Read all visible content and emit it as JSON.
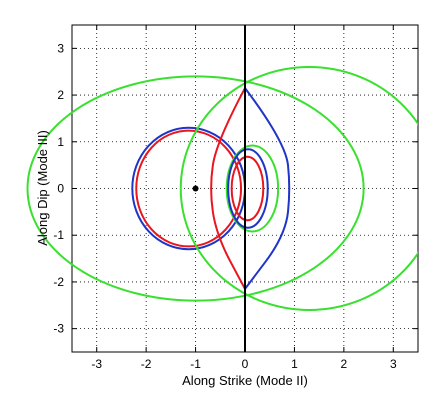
{
  "chart_data": {
    "type": "line",
    "title": "",
    "xlabel": "Along Strike (Mode II)",
    "ylabel": "Along Dip (Mode III)",
    "xlim": [
      -3.5,
      3.5
    ],
    "ylim": [
      -3.5,
      3.5
    ],
    "xticks": [
      -3,
      -2,
      -1,
      0,
      1,
      2,
      3
    ],
    "yticks": [
      -3,
      -2,
      -1,
      0,
      1,
      2,
      3
    ],
    "xtick_labels": [
      "-3",
      "-2",
      "-1",
      "0",
      "1",
      "2",
      "3"
    ],
    "ytick_labels": [
      "-3",
      "-2",
      "-1",
      "0",
      "1",
      "2",
      "3"
    ],
    "grid": "dotted",
    "legend": "none",
    "colors": {
      "red": "#e8161e",
      "blue": "#1f35c8",
      "green": "#39e02f",
      "black": "#000000"
    },
    "vertical_line": {
      "x": 0
    },
    "point": {
      "x": -1,
      "y": 0
    },
    "series": [
      {
        "color": "green",
        "shape": "circle",
        "cx": -1,
        "cy": 0,
        "rx": 3.4,
        "ry": 2.4
      },
      {
        "color": "blue",
        "shape": "circle",
        "cx": -1.14,
        "cy": 0,
        "rx": 1.14,
        "ry": 1.3
      },
      {
        "color": "red",
        "shape": "circle",
        "cx": -1.14,
        "cy": 0,
        "rx": 1.06,
        "ry": 1.24
      },
      {
        "color": "green",
        "shape": "arc",
        "cx": 1.3,
        "cy": 0,
        "rx": 2.6,
        "ry": 2.6
      },
      {
        "color": "green",
        "shape": "circle",
        "cx": 0.15,
        "cy": 0,
        "rx": 0.52,
        "ry": 0.92
      },
      {
        "color": "blue",
        "shape": "circle",
        "cx": 0.06,
        "cy": 0,
        "rx": 0.4,
        "ry": 0.84
      },
      {
        "color": "red",
        "shape": "circle",
        "cx": 0.05,
        "cy": 0,
        "rx": 0.32,
        "ry": 0.68
      },
      {
        "color": "red",
        "shape": "line",
        "x": [
          0,
          -0.58,
          -0.72,
          -0.58,
          0
        ],
        "y": [
          2.15,
          1.0,
          0,
          -1.0,
          -2.15
        ]
      },
      {
        "color": "blue",
        "shape": "line",
        "x": [
          0,
          0.82,
          0.92,
          0.82,
          0
        ],
        "y": [
          2.15,
          1.0,
          0,
          -1.0,
          -2.15
        ]
      }
    ]
  }
}
